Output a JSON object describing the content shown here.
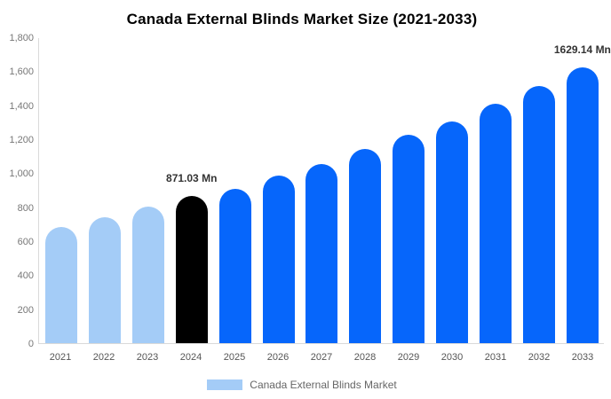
{
  "chart_data": {
    "type": "bar",
    "title": "Canada External Blinds Market Size (2021-2033)",
    "categories": [
      "2021",
      "2022",
      "2023",
      "2024",
      "2025",
      "2026",
      "2027",
      "2028",
      "2029",
      "2030",
      "2031",
      "2032",
      "2033"
    ],
    "values": [
      690,
      746,
      809,
      871.03,
      913,
      991,
      1059,
      1148,
      1231,
      1310,
      1414,
      1518,
      1629.14
    ],
    "bar_colors": [
      "#a4ccf7",
      "#a4ccf7",
      "#a4ccf7",
      "#000000",
      "#0666fb",
      "#0666fb",
      "#0666fb",
      "#0666fb",
      "#0666fb",
      "#0666fb",
      "#0666fb",
      "#0666fb",
      "#0666fb"
    ],
    "data_labels": [
      "",
      "",
      "",
      "871.03 Mn",
      "",
      "",
      "",
      "",
      "",
      "",
      "",
      "",
      "1629.14 Mn"
    ],
    "xlabel": "",
    "ylabel": "",
    "ylim": [
      0,
      1800
    ],
    "yticks": [
      "0",
      "200",
      "400",
      "600",
      "800",
      "1,000",
      "1,200",
      "1,400",
      "1,600",
      "1,800"
    ],
    "grid": false,
    "legend": {
      "position": "bottom",
      "items": [
        {
          "label": "Canada External Blinds Market",
          "color": "#a4ccf7"
        }
      ]
    }
  },
  "colors": {
    "historical_bar": "#a4ccf7",
    "highlight_bar": "#000000",
    "forecast_bar": "#0666fb",
    "axis_line": "#d9d9d9",
    "ytick_text": "#777777",
    "xtick_text": "#555555",
    "value_label_text": "#333333",
    "legend_text": "#666666",
    "title_text": "#000000",
    "background": "#ffffff"
  }
}
